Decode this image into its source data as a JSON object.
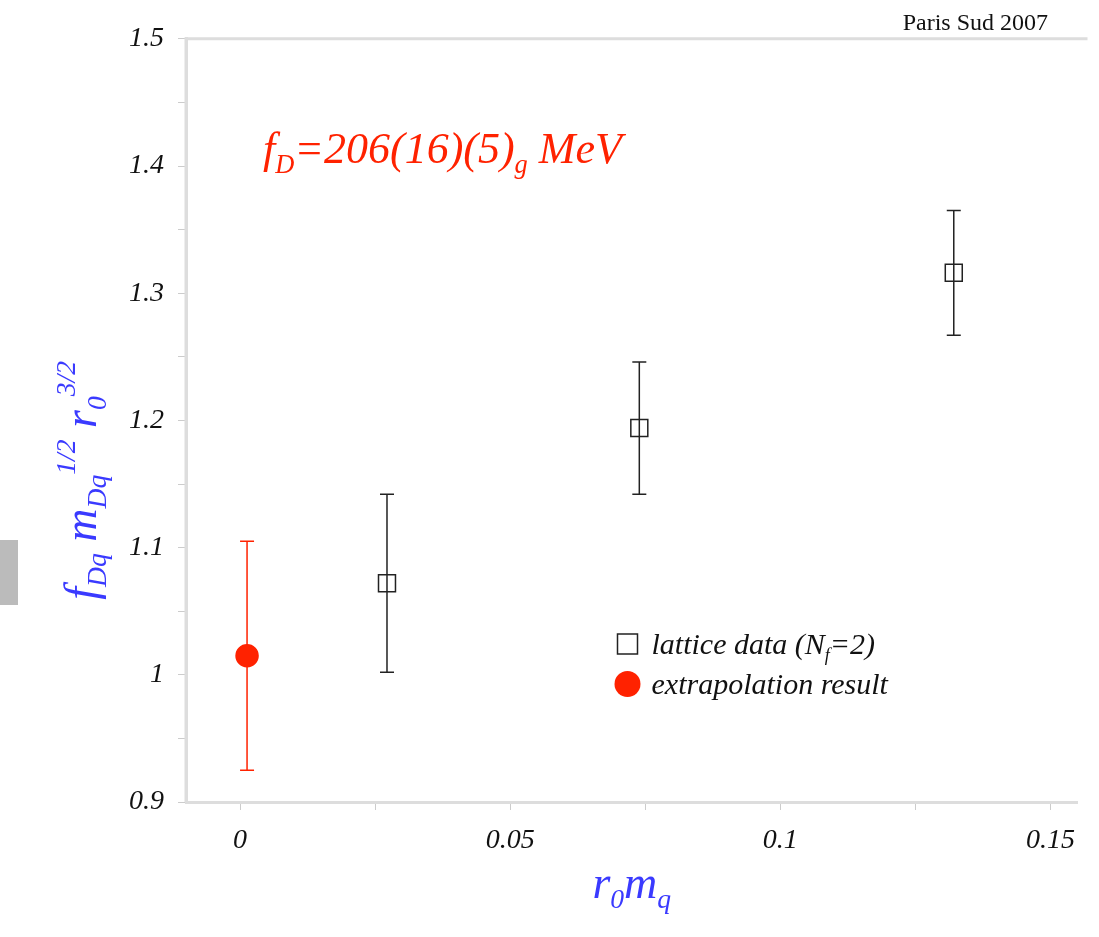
{
  "chart_data": {
    "type": "scatter",
    "xlabel": "r$_{0}$m$_{q}$",
    "ylabel": "f$_{Dq}$ m$_{Dq}$$^{1/2}$ r$_{0}$$^{3/2}$",
    "annotations": [
      "f$_{D}$=206(16)(5)$_{g}$ MeV",
      "Paris Sud 2007"
    ],
    "series": [
      {
        "name": "lattice data (N$_{f}$=2)",
        "color": "#222222",
        "marker": "square",
        "x": [
          0.0272,
          0.0739,
          0.1321
        ],
        "values": [
          1.072,
          1.194,
          1.316
        ],
        "errors": [
          0.07,
          0.052,
          0.049
        ]
      },
      {
        "name": "extrapolation result",
        "color": "#ff2200",
        "marker": "circle",
        "x": [
          0.0013
        ],
        "values": [
          1.015
        ],
        "errors": [
          0.09
        ]
      }
    ],
    "xlim": [
      -0.01,
      0.155
    ],
    "xticks": [
      0,
      {
        "value": 0.025,
        "label": null
      },
      0.05,
      {
        "value": 0.075,
        "label": null
      },
      0.1,
      {
        "value": 0.125,
        "label": null
      },
      0.15
    ],
    "ylim": [
      0.9,
      1.5
    ],
    "yticks": [
      0.9,
      {
        "value": 0.95,
        "label": null
      },
      1,
      {
        "value": 1.05,
        "label": null
      },
      1.1,
      {
        "value": 1.15,
        "label": null
      },
      1.2,
      {
        "value": 1.25,
        "label": null
      },
      1.3,
      {
        "value": 1.35,
        "label": null
      },
      1.4,
      {
        "value": 1.45,
        "label": null
      },
      1.5
    ],
    "grid": false,
    "legend": "bottom right"
  }
}
